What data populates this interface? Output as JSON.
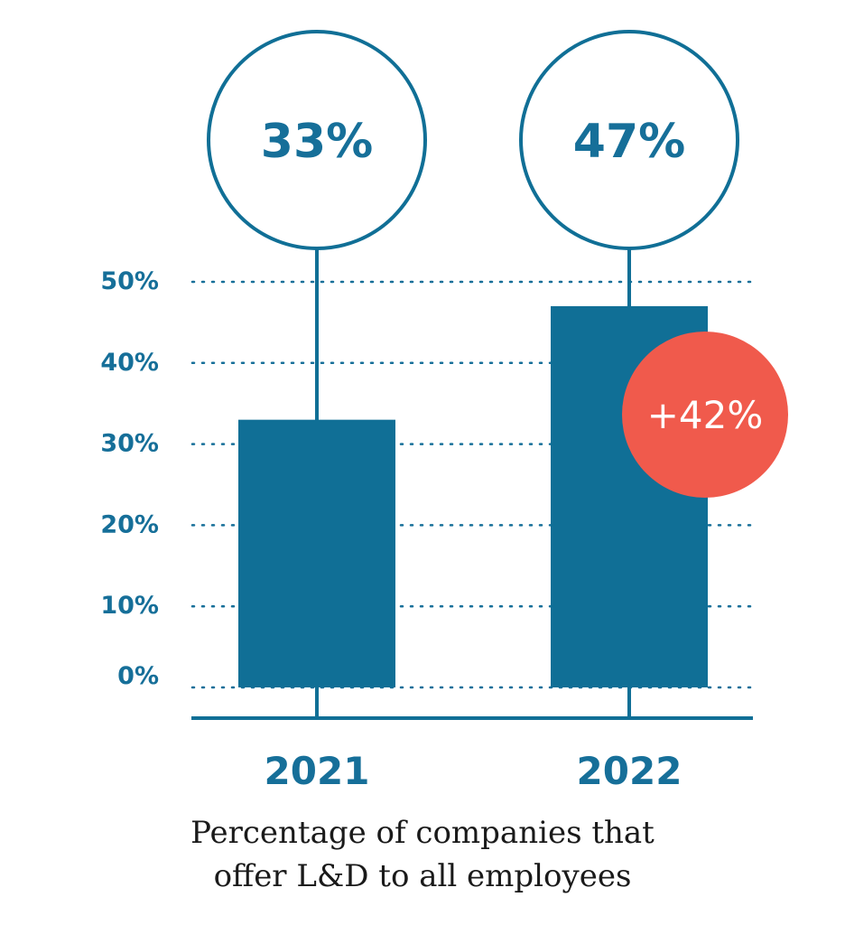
{
  "chart_data": {
    "type": "bar",
    "categories": [
      "2021",
      "2022"
    ],
    "values": [
      33,
      47
    ],
    "value_labels": [
      "33%",
      "47%"
    ],
    "ylim": [
      0,
      50
    ],
    "y_ticks": [
      0,
      10,
      20,
      30,
      40,
      50
    ],
    "y_tick_labels": [
      "0%",
      "10%",
      "20%",
      "30%",
      "40%",
      "50%"
    ],
    "grid": "dotted horizontal",
    "change_badge": {
      "text": "+42%",
      "category": "2022"
    },
    "caption_lines": [
      "Percentage of companies that",
      "offer L&D to all employees"
    ],
    "colors": {
      "bar": "#106f96",
      "text": "#166f99",
      "badge": "#f05a4c",
      "grid": "#166f99",
      "caption": "#1a1a1a"
    }
  }
}
